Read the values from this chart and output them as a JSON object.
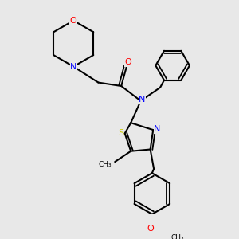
{
  "bg_color": "#e8e8e8",
  "atom_colors": {
    "N": "#0000ff",
    "O": "#ff0000",
    "S": "#cccc00"
  },
  "bond_color": "#000000",
  "bond_width": 1.5
}
